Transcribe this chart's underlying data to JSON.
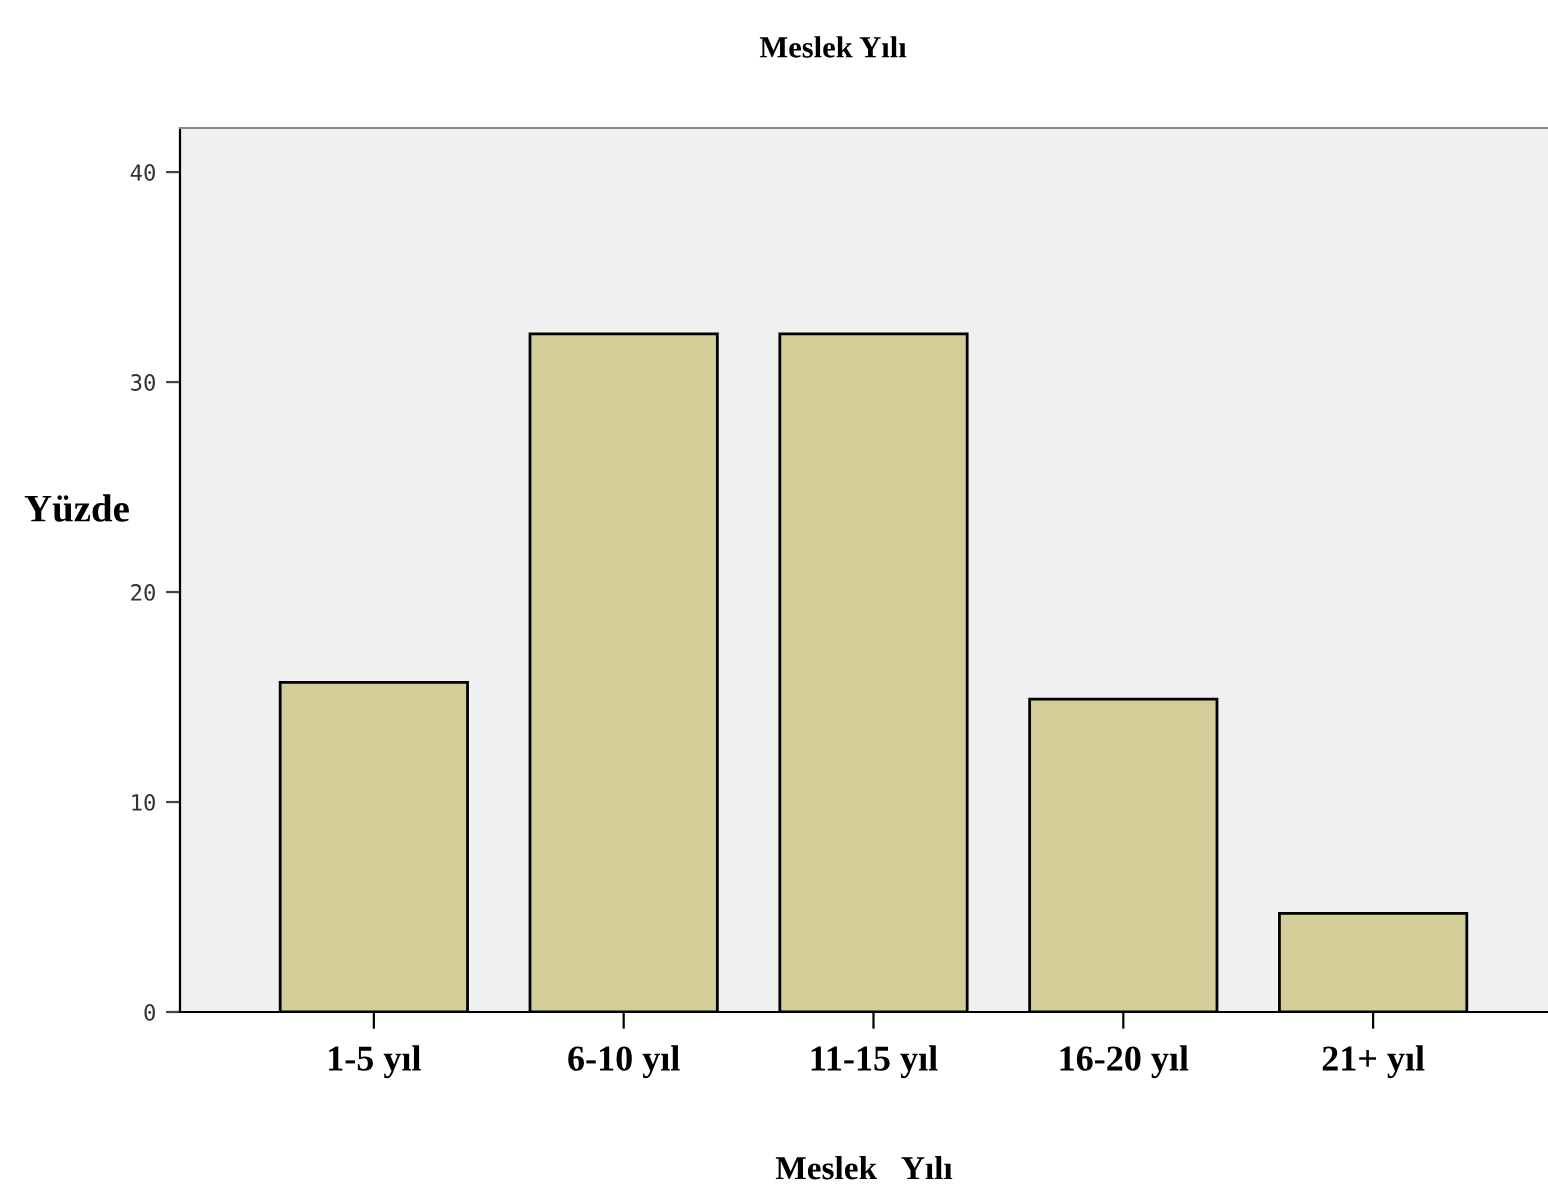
{
  "chart_data": {
    "type": "bar",
    "title": "Meslek Yılı",
    "xlabel": "Meslek   Yılı",
    "ylabel": "Yüzde",
    "categories": [
      "1-5 yıl",
      "6-10 yıl",
      "11-15 yıl",
      "16-20 yıl",
      "21+ yıl"
    ],
    "values": [
      15.7,
      32.3,
      32.3,
      14.9,
      4.7
    ],
    "color": "#d3ce98",
    "ylim": [
      0,
      42.1
    ],
    "yticks": [
      0,
      10,
      20,
      30,
      40
    ],
    "grid": false,
    "legend": false
  }
}
